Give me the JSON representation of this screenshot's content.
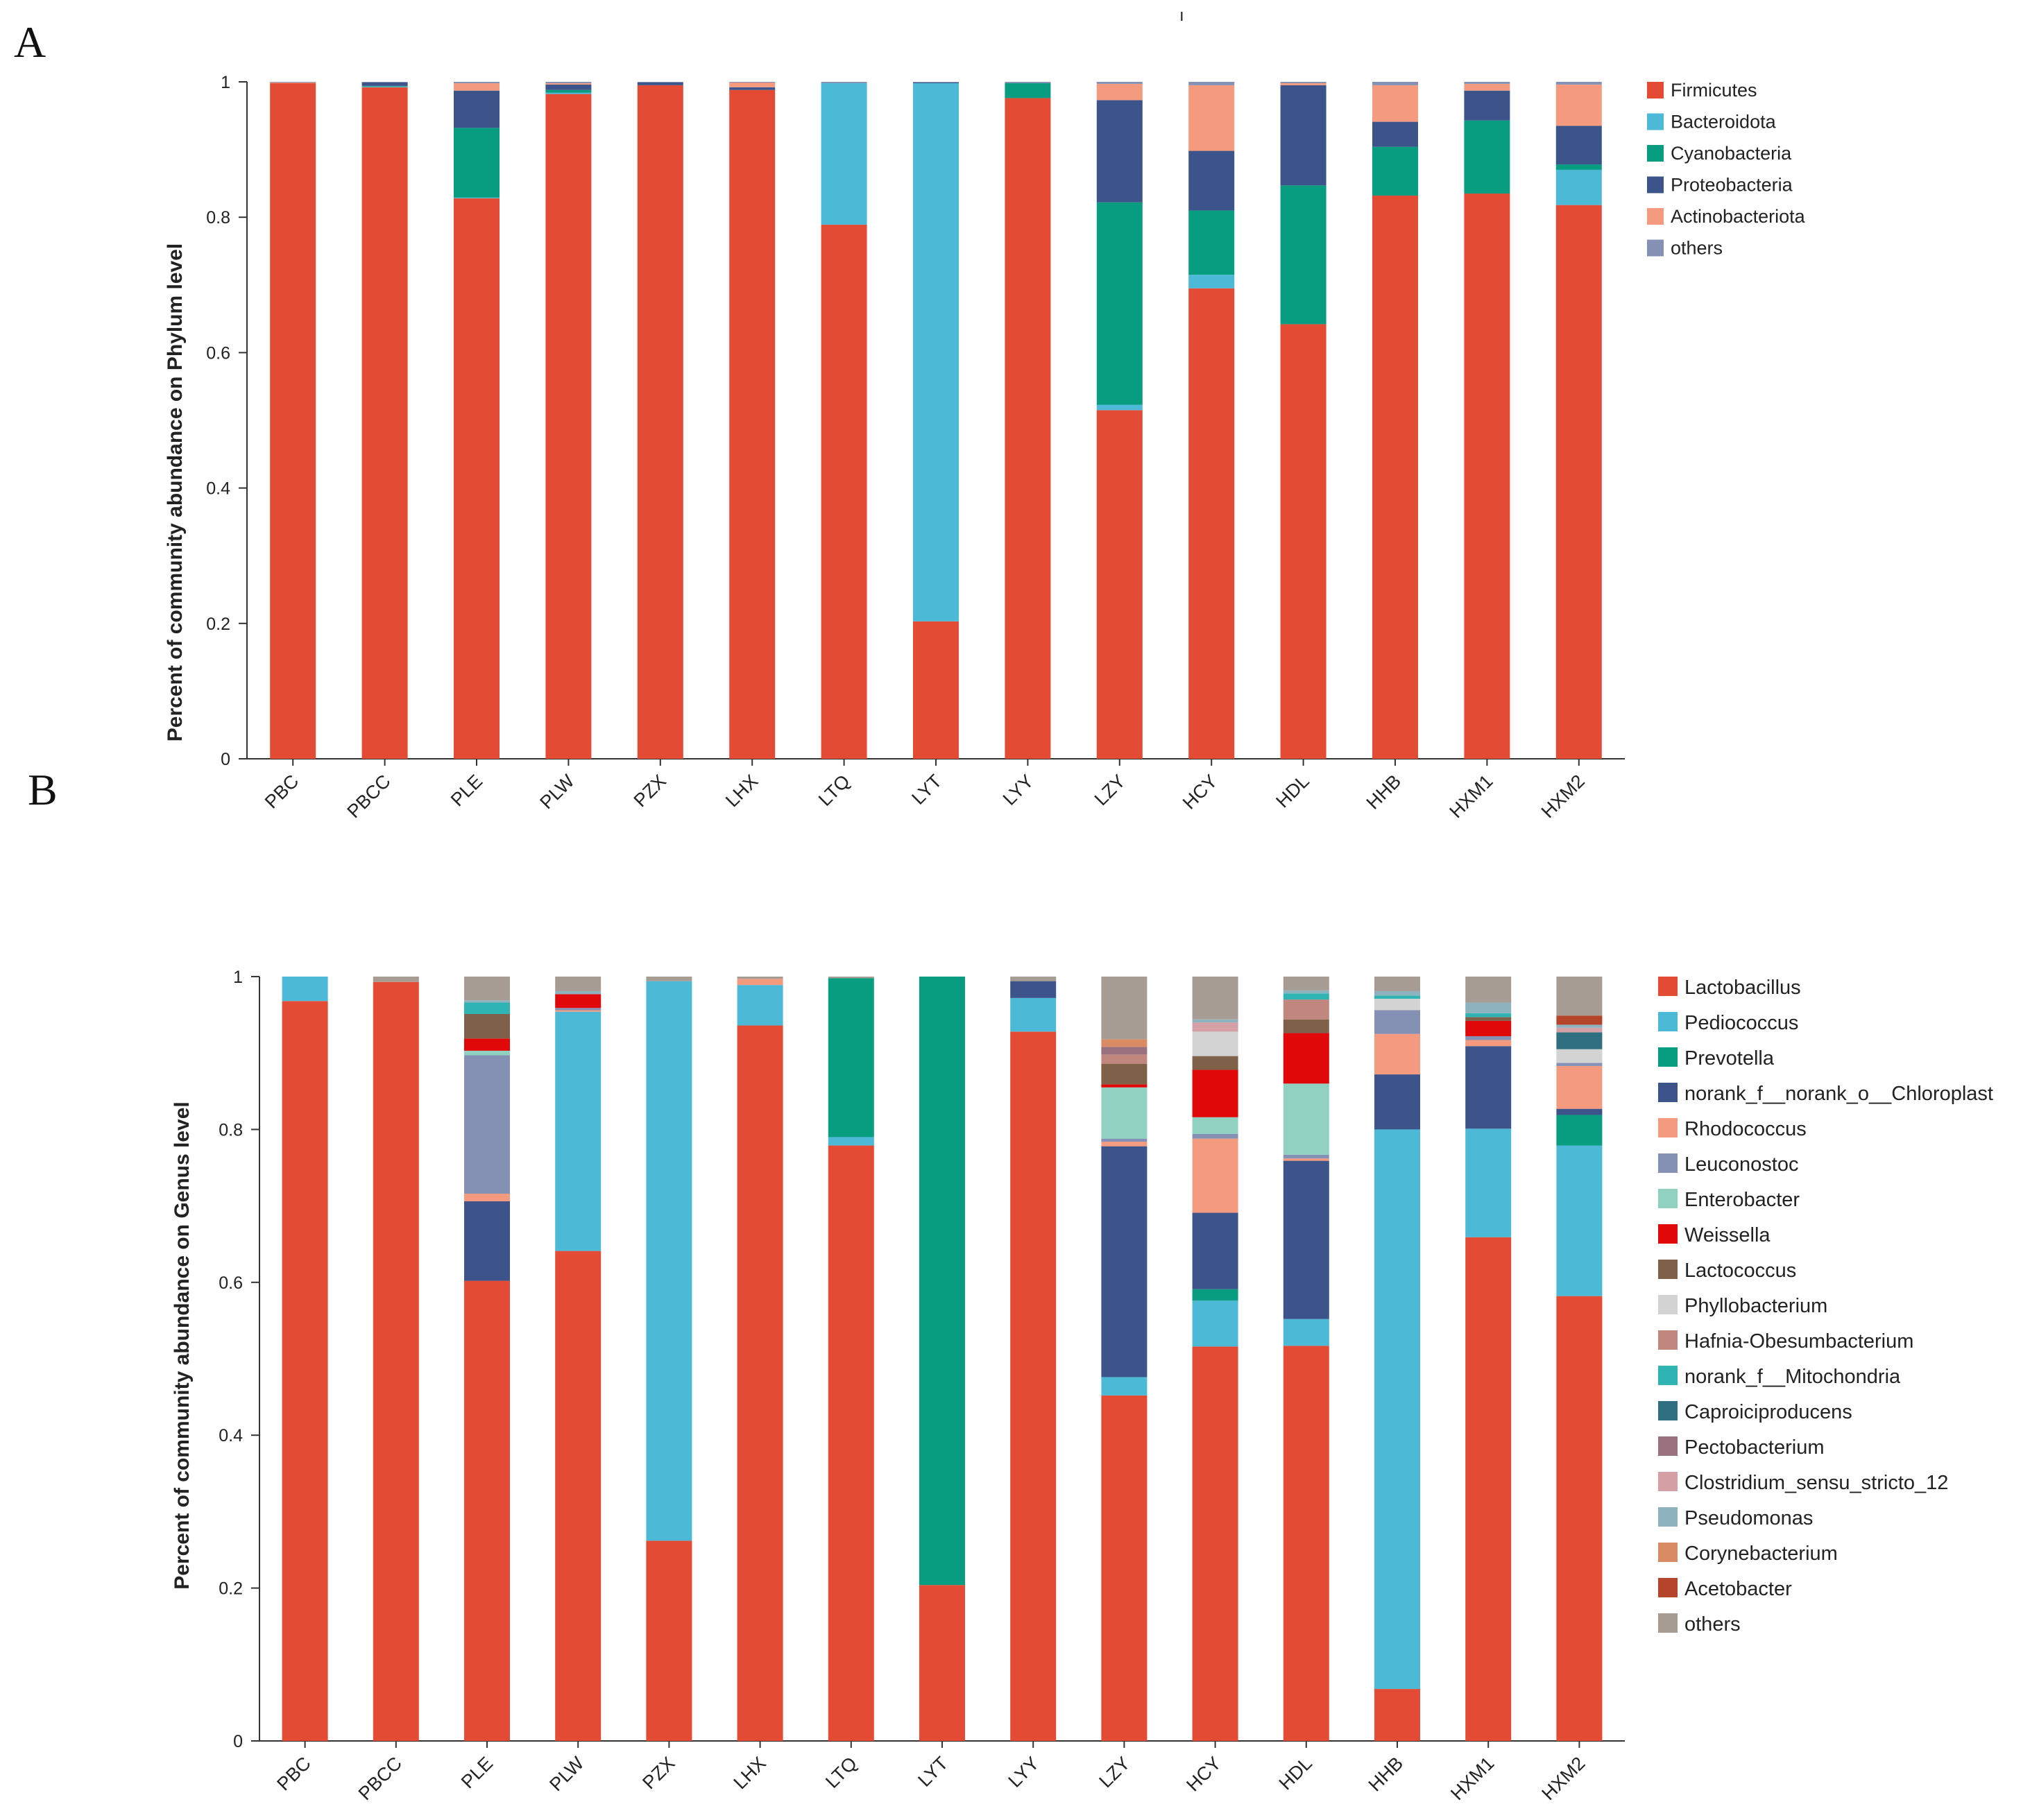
{
  "panel_labels": [
    "A",
    "B"
  ],
  "stray_mark": "ı",
  "chart_data": [
    {
      "panel": "A",
      "type": "bar",
      "stacked": true,
      "title": "",
      "xlabel": "",
      "ylabel": "Percent of community abundance on Phylum level",
      "ylim": [
        0,
        1
      ],
      "yticks": [
        "0",
        "0.2",
        "0.4",
        "0.6",
        "0.8",
        "1"
      ],
      "legend_position": "right",
      "categories": [
        "PBC",
        "PBCC",
        "PLE",
        "PLW",
        "PZX",
        "LHX",
        "LTQ",
        "LYT",
        "LYY",
        "LZY",
        "HCY",
        "HDL",
        "HHB",
        "HXM1",
        "HXM2"
      ],
      "series": [
        {
          "name": "Firmicutes",
          "color": "#E34B35",
          "values": [
            0.998,
            0.992,
            0.828,
            0.982,
            0.995,
            0.988,
            0.789,
            0.203,
            0.976,
            0.515,
            0.695,
            0.642,
            0.832,
            0.835,
            0.818
          ]
        },
        {
          "name": "Bacteroidota",
          "color": "#4CBAD6",
          "values": [
            0.0,
            0.001,
            0.001,
            0.002,
            0.0,
            0.0,
            0.209,
            0.795,
            0.0,
            0.008,
            0.02,
            0.0,
            0.0,
            0.0,
            0.052
          ]
        },
        {
          "name": "Cyanobacteria",
          "color": "#089C80",
          "values": [
            0.0,
            0.001,
            0.103,
            0.004,
            0.0,
            0.0,
            0.0,
            0.0,
            0.022,
            0.299,
            0.095,
            0.205,
            0.072,
            0.108,
            0.008
          ]
        },
        {
          "name": "Proteobacteria",
          "color": "#3C5489",
          "values": [
            0.0,
            0.005,
            0.055,
            0.008,
            0.004,
            0.004,
            0.0,
            0.001,
            0.0,
            0.151,
            0.088,
            0.148,
            0.037,
            0.044,
            0.057
          ]
        },
        {
          "name": "Actinobacteriota",
          "color": "#F39A7F",
          "values": [
            0.001,
            0.0,
            0.011,
            0.002,
            0.0,
            0.007,
            0.0,
            0.0,
            0.0,
            0.024,
            0.097,
            0.003,
            0.054,
            0.01,
            0.061
          ]
        },
        {
          "name": "others",
          "color": "#8491B4",
          "values": [
            0.001,
            0.001,
            0.002,
            0.002,
            0.001,
            0.001,
            0.002,
            0.001,
            0.002,
            0.003,
            0.005,
            0.002,
            0.005,
            0.003,
            0.004
          ]
        }
      ]
    },
    {
      "panel": "B",
      "type": "bar",
      "stacked": true,
      "title": "",
      "xlabel": "",
      "ylabel": "Percent of community abundance on Genus level",
      "ylim": [
        0,
        1
      ],
      "yticks": [
        "0",
        "0.2",
        "0.4",
        "0.6",
        "0.8",
        "1"
      ],
      "legend_position": "right",
      "categories": [
        "PBC",
        "PBCC",
        "PLE",
        "PLW",
        "PZX",
        "LHX",
        "LTQ",
        "LYT",
        "LYY",
        "LZY",
        "HCY",
        "HDL",
        "HHB",
        "HXM1",
        "HXM2"
      ],
      "series": [
        {
          "name": "Lactobacillus",
          "color": "#E34B35",
          "values": [
            0.968,
            0.993,
            0.602,
            0.641,
            0.262,
            0.936,
            0.779,
            0.204,
            0.928,
            0.452,
            0.516,
            0.517,
            0.068,
            0.659,
            0.582
          ]
        },
        {
          "name": "Pediococcus",
          "color": "#4CBAD6",
          "values": [
            0.032,
            0.0,
            0.0,
            0.313,
            0.732,
            0.053,
            0.011,
            0.0,
            0.044,
            0.024,
            0.06,
            0.035,
            0.732,
            0.142,
            0.197
          ]
        },
        {
          "name": "Prevotella",
          "color": "#089C80",
          "values": [
            0.0,
            0.0,
            0.0,
            0.0,
            0.0,
            0.0,
            0.208,
            0.796,
            0.0,
            0.0,
            0.015,
            0.0,
            0.0,
            0.0,
            0.04
          ]
        },
        {
          "name": "norank_f__norank_o__Chloroplast",
          "color": "#3C5489",
          "values": [
            0.0,
            0.0,
            0.104,
            0.0,
            0.0,
            0.0,
            0.0,
            0.0,
            0.022,
            0.302,
            0.1,
            0.207,
            0.072,
            0.108,
            0.008
          ]
        },
        {
          "name": "Rhodococcus",
          "color": "#F39A7F",
          "values": [
            0.0,
            0.0,
            0.01,
            0.002,
            0.0,
            0.008,
            0.0,
            0.0,
            0.0,
            0.006,
            0.097,
            0.003,
            0.053,
            0.008,
            0.056
          ]
        },
        {
          "name": "Leuconostoc",
          "color": "#8491B4",
          "values": [
            0.0,
            0.0,
            0.181,
            0.003,
            0.0,
            0.0,
            0.0,
            0.0,
            0.0,
            0.004,
            0.006,
            0.005,
            0.031,
            0.005,
            0.004
          ]
        },
        {
          "name": "Enterobacter",
          "color": "#91D1C2",
          "values": [
            0.0,
            0.0,
            0.006,
            0.0,
            0.0,
            0.0,
            0.0,
            0.0,
            0.0,
            0.067,
            0.022,
            0.093,
            0.0,
            0.0,
            0.0
          ]
        },
        {
          "name": "Weissella",
          "color": "#E00808",
          "values": [
            0.0,
            0.0,
            0.016,
            0.018,
            0.0,
            0.0,
            0.0,
            0.0,
            0.0,
            0.004,
            0.062,
            0.066,
            0.0,
            0.02,
            0.0
          ]
        },
        {
          "name": "Lactococcus",
          "color": "#7E6148",
          "values": [
            0.0,
            0.0,
            0.032,
            0.0,
            0.0,
            0.0,
            0.0,
            0.0,
            0.0,
            0.027,
            0.018,
            0.018,
            0.0,
            0.005,
            0.0
          ]
        },
        {
          "name": "Phyllobacterium",
          "color": "#D3D3D3",
          "values": [
            0.0,
            0.0,
            0.0,
            0.0,
            0.0,
            0.0,
            0.0,
            0.0,
            0.0,
            0.0,
            0.032,
            0.0,
            0.015,
            0.0,
            0.018
          ]
        },
        {
          "name": "Hafnia-Obesumbacterium",
          "color": "#C1877F",
          "values": [
            0.0,
            0.0,
            0.0,
            0.0,
            0.0,
            0.0,
            0.0,
            0.0,
            0.0,
            0.012,
            0.0,
            0.026,
            0.0,
            0.0,
            0.0
          ]
        },
        {
          "name": "norank_f__Mitochondria",
          "color": "#2FB3B3",
          "values": [
            0.0,
            0.0,
            0.015,
            0.0,
            0.0,
            0.0,
            0.0,
            0.0,
            0.0,
            0.0,
            0.0,
            0.008,
            0.004,
            0.005,
            0.0
          ]
        },
        {
          "name": "Caproiciproducens",
          "color": "#2F6F80",
          "values": [
            0.0,
            0.0,
            0.0,
            0.0,
            0.0,
            0.0,
            0.0,
            0.0,
            0.0,
            0.0,
            0.0,
            0.0,
            0.0,
            0.0,
            0.022
          ]
        },
        {
          "name": "Pectobacterium",
          "color": "#98707E",
          "values": [
            0.0,
            0.0,
            0.0,
            0.0,
            0.0,
            0.0,
            0.0,
            0.0,
            0.0,
            0.01,
            0.0,
            0.0,
            0.0,
            0.0,
            0.0
          ]
        },
        {
          "name": "Clostridium_sensu_stricto_12",
          "color": "#D4A0A6",
          "values": [
            0.0,
            0.0,
            0.0,
            0.0,
            0.0,
            0.0,
            0.0,
            0.0,
            0.0,
            0.0,
            0.012,
            0.0,
            0.0,
            0.0,
            0.006
          ]
        },
        {
          "name": "Pseudomonas",
          "color": "#8EB2BE",
          "values": [
            0.0,
            0.0,
            0.003,
            0.004,
            0.0,
            0.0,
            0.0,
            0.0,
            0.0,
            0.0,
            0.004,
            0.004,
            0.006,
            0.014,
            0.004
          ]
        },
        {
          "name": "Corynebacterium",
          "color": "#D98C64",
          "values": [
            0.0,
            0.0,
            0.0,
            0.0,
            0.0,
            0.0,
            0.0,
            0.0,
            0.0,
            0.01,
            0.0,
            0.0,
            0.0,
            0.0,
            0.0
          ]
        },
        {
          "name": "Acetobacter",
          "color": "#B4452A",
          "values": [
            0.0,
            0.0,
            0.0,
            0.0,
            0.0,
            0.0,
            0.0,
            0.0,
            0.0,
            0.0,
            0.0,
            0.0,
            0.0,
            0.0,
            0.012
          ]
        },
        {
          "name": "others",
          "color": "#A79C93",
          "values": [
            0.0,
            0.007,
            0.031,
            0.019,
            0.006,
            0.003,
            0.002,
            0.0,
            0.006,
            0.082,
            0.056,
            0.018,
            0.021,
            0.034,
            0.051
          ]
        }
      ]
    }
  ]
}
